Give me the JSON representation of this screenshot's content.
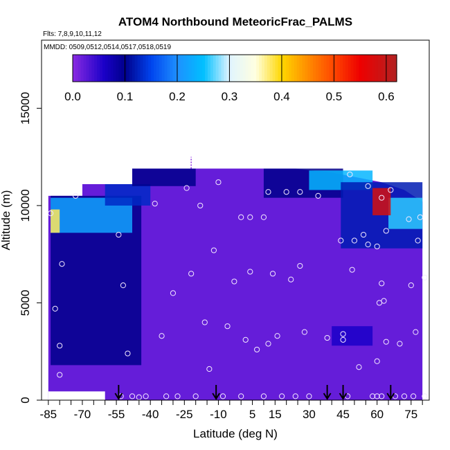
{
  "chart_data": {
    "type": "heatmap",
    "title": "ATOM4 Northbound MeteoricFrac_PALMS",
    "subtitle_flights": "Flts: 7,8,9,10,11,12",
    "subtitle_dates": "MMDD: 0509,0512,0514,0517,0518,0519",
    "xlabel": "Latitude (deg N)",
    "ylabel": "Altitude (m)",
    "xlim": [
      -88,
      83
    ],
    "ylim": [
      0,
      18500
    ],
    "x_ticks": [
      -85,
      -70,
      -55,
      -40,
      -25,
      -10,
      5,
      15,
      30,
      45,
      60,
      75
    ],
    "x_ticks_unlabeled": [
      -80,
      -75,
      -65,
      -60,
      -50,
      -45,
      -35,
      -30,
      -20,
      -15,
      -5,
      0,
      10,
      20,
      25,
      35,
      40,
      50,
      55,
      65,
      70,
      80
    ],
    "y_ticks": [
      0,
      5000,
      10000,
      15000
    ],
    "colorbar": {
      "min": 0.0,
      "max": 0.62,
      "ticks": [
        0.0,
        0.1,
        0.2,
        0.3,
        0.4,
        0.5,
        0.6
      ],
      "tick_labels": [
        "0.0",
        "0.1",
        "0.2",
        "0.3",
        "0.4",
        "0.5",
        "0.6"
      ],
      "stops": [
        [
          0.0,
          "#8a2be2"
        ],
        [
          0.06,
          "#1a00c8"
        ],
        [
          0.1,
          "#00008b"
        ],
        [
          0.15,
          "#0044ee"
        ],
        [
          0.2,
          "#1e90ff"
        ],
        [
          0.25,
          "#00bfff"
        ],
        [
          0.3,
          "#e0f4ff"
        ],
        [
          0.35,
          "#ffffe0"
        ],
        [
          0.4,
          "#ffd700"
        ],
        [
          0.45,
          "#ff8c00"
        ],
        [
          0.5,
          "#ff4500"
        ],
        [
          0.55,
          "#ee0000"
        ],
        [
          0.62,
          "#b22222"
        ]
      ]
    },
    "background_value": 0.02,
    "domain_outline": [
      [
        -85,
        0
      ],
      [
        -85,
        10500
      ],
      [
        -70,
        10500
      ],
      [
        -70,
        11100
      ],
      [
        -48,
        11100
      ],
      [
        -48,
        11900
      ],
      [
        24,
        11900
      ],
      [
        40,
        11700
      ],
      [
        62,
        11200
      ],
      [
        72,
        10800
      ],
      [
        80,
        10200
      ],
      [
        80,
        0
      ]
    ],
    "bottom_gap": {
      "lat_range": [
        -85,
        -60
      ],
      "alt_max": 450,
      "color": "#ffffff"
    },
    "features": [
      {
        "name": "southern-low-altitude-blue-column",
        "lat": [
          -84,
          -44
        ],
        "alt": [
          1800,
          10500
        ],
        "value": 0.1
      },
      {
        "name": "southern-upper-light-blue-layer",
        "lat": [
          -84,
          -48
        ],
        "alt": [
          8600,
          10400
        ],
        "value": 0.22
      },
      {
        "name": "southern-peak",
        "lat": [
          -84,
          -80
        ],
        "alt": [
          8600,
          9800
        ],
        "value": 0.38
      },
      {
        "name": "southern-upper-blue-band",
        "lat": [
          -60,
          -40
        ],
        "alt": [
          10000,
          11100
        ],
        "value": 0.13
      },
      {
        "name": "upper-mid-blue-band",
        "lat": [
          -48,
          -20
        ],
        "alt": [
          11000,
          11900
        ],
        "value": 0.1
      },
      {
        "name": "upper-north-blue-band",
        "lat": [
          10,
          45
        ],
        "alt": [
          10400,
          11900
        ],
        "value": 0.1
      },
      {
        "name": "upper-north-light-band",
        "lat": [
          30,
          58
        ],
        "alt": [
          10800,
          11800
        ],
        "value": 0.24
      },
      {
        "name": "northern-blue-patch",
        "lat": [
          44,
          80
        ],
        "alt": [
          7800,
          11200
        ],
        "value": 0.12
      },
      {
        "name": "northern-light-patch",
        "lat": [
          65,
          80
        ],
        "alt": [
          8800,
          10400
        ],
        "value": 0.26
      },
      {
        "name": "northern-peak",
        "lat": [
          58,
          66
        ],
        "alt": [
          9500,
          10900
        ],
        "value": 0.58
      },
      {
        "name": "mid-lower-dark-patch",
        "lat": [
          40,
          58
        ],
        "alt": [
          2800,
          3800
        ],
        "value": 0.06
      }
    ],
    "observation_points": [
      [
        -84,
        9600
      ],
      [
        -82,
        4700
      ],
      [
        -80,
        2800
      ],
      [
        -80,
        1300
      ],
      [
        -79,
        7000
      ],
      [
        -73,
        10500
      ],
      [
        -54,
        8500
      ],
      [
        -52,
        5900
      ],
      [
        -50,
        2400
      ],
      [
        -53,
        200
      ],
      [
        -48,
        200
      ],
      [
        -45,
        150
      ],
      [
        -42,
        200
      ],
      [
        -38,
        10100
      ],
      [
        -35,
        3300
      ],
      [
        -33,
        200
      ],
      [
        -30,
        5500
      ],
      [
        -28,
        200
      ],
      [
        -24,
        10900
      ],
      [
        -22,
        6500
      ],
      [
        -20,
        200
      ],
      [
        -18,
        10000
      ],
      [
        -16,
        4000
      ],
      [
        -14,
        1600
      ],
      [
        -12,
        7700
      ],
      [
        -10,
        11200
      ],
      [
        -8,
        200
      ],
      [
        -6,
        3800
      ],
      [
        -3,
        6100
      ],
      [
        0,
        200
      ],
      [
        0,
        9400
      ],
      [
        2,
        3100
      ],
      [
        4,
        6600
      ],
      [
        4,
        9400
      ],
      [
        7,
        2600
      ],
      [
        10,
        200
      ],
      [
        10,
        9400
      ],
      [
        12,
        2900
      ],
      [
        12,
        10700
      ],
      [
        14,
        6500
      ],
      [
        16,
        3300
      ],
      [
        18,
        200
      ],
      [
        20,
        10700
      ],
      [
        22,
        6200
      ],
      [
        24,
        200
      ],
      [
        26,
        6900
      ],
      [
        26,
        10700
      ],
      [
        28,
        3500
      ],
      [
        30,
        200
      ],
      [
        34,
        10500
      ],
      [
        38,
        3200
      ],
      [
        44,
        8200
      ],
      [
        45,
        3400
      ],
      [
        45,
        3100
      ],
      [
        47,
        200
      ],
      [
        48,
        11600
      ],
      [
        49,
        6700
      ],
      [
        50,
        8200
      ],
      [
        52,
        1700
      ],
      [
        54,
        8500
      ],
      [
        56,
        11000
      ],
      [
        56,
        8000
      ],
      [
        58,
        200
      ],
      [
        60,
        200
      ],
      [
        60,
        2000
      ],
      [
        60,
        7900
      ],
      [
        61,
        5000
      ],
      [
        62,
        6000
      ],
      [
        62,
        200
      ],
      [
        62,
        10400
      ],
      [
        63,
        5100
      ],
      [
        64,
        8700
      ],
      [
        64,
        3000
      ],
      [
        66,
        10800
      ],
      [
        68,
        200
      ],
      [
        70,
        2900
      ],
      [
        72,
        200
      ],
      [
        74,
        9300
      ],
      [
        75,
        5900
      ],
      [
        76,
        200
      ],
      [
        77,
        3500
      ],
      [
        78,
        8200
      ],
      [
        79,
        9400
      ],
      [
        81,
        6300
      ],
      [
        81,
        200
      ]
    ],
    "arrows": [
      -54,
      -11,
      38,
      45,
      66
    ],
    "marker_line": {
      "lat": -22,
      "alt": [
        11900,
        12500
      ]
    }
  }
}
